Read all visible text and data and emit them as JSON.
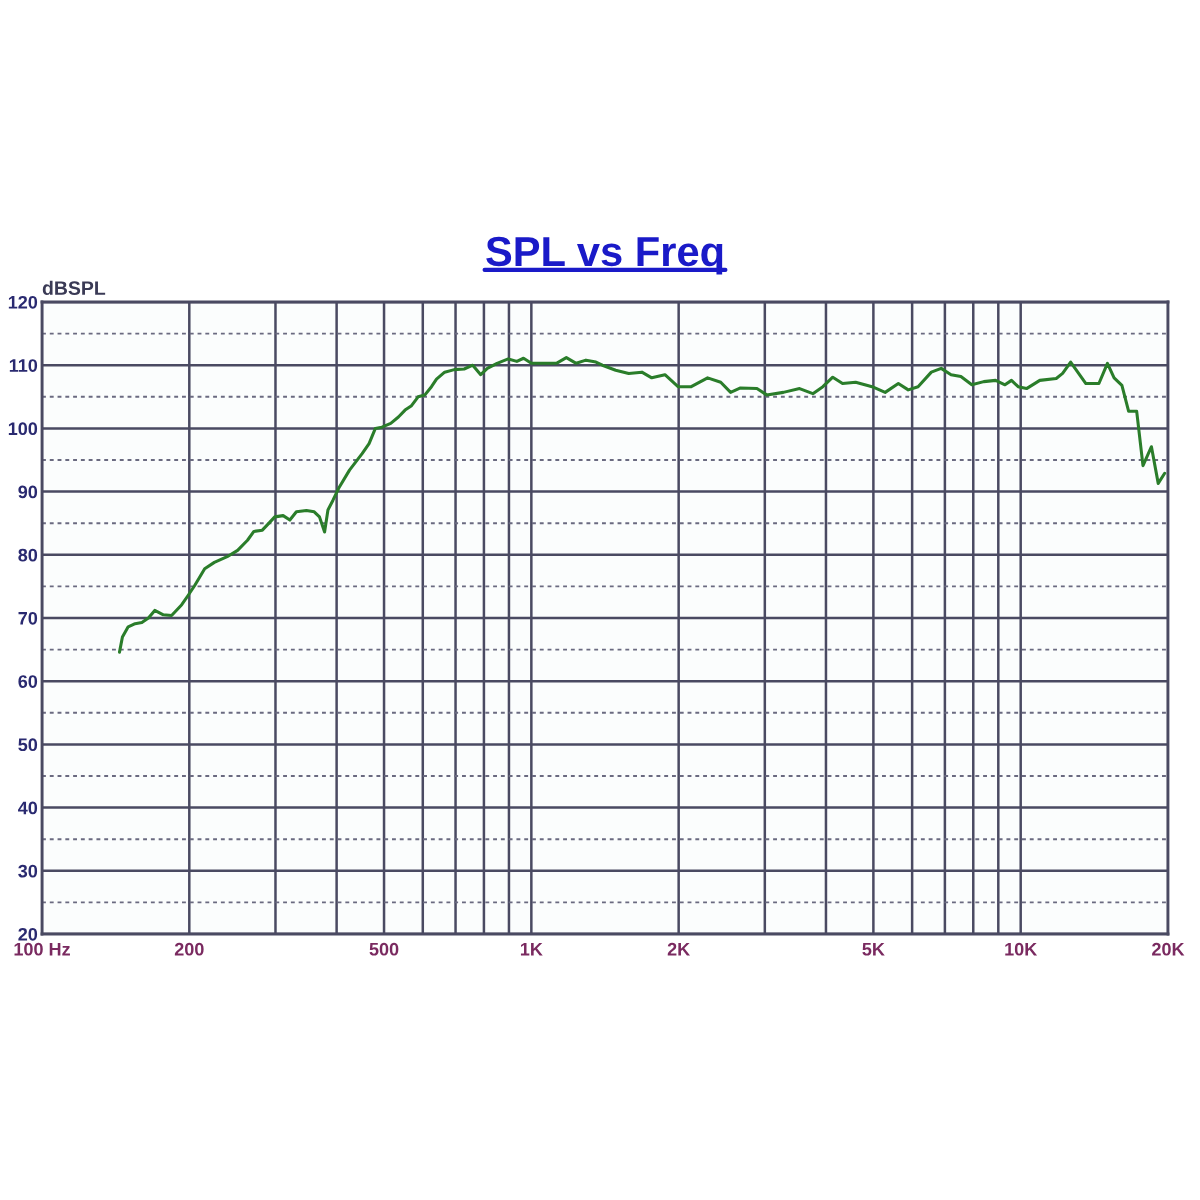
{
  "chart_data": {
    "type": "line",
    "title": "SPL vs Freq",
    "ylabel": "dBSPL",
    "log": "x",
    "grid": true,
    "xlim": [
      100,
      20000
    ],
    "xticks": [
      {
        "value": 100,
        "label": "100 Hz"
      },
      200,
      {
        "value": 300,
        "label": null
      },
      {
        "value": 400,
        "label": null
      },
      500,
      {
        "value": 600,
        "label": null
      },
      {
        "value": 700,
        "label": null
      },
      {
        "value": 800,
        "label": null
      },
      {
        "value": 900,
        "label": null
      },
      {
        "value": 1000,
        "label": "1K"
      },
      {
        "value": 2000,
        "label": "2K"
      },
      {
        "value": 3000,
        "label": null
      },
      {
        "value": 4000,
        "label": null
      },
      {
        "value": 5000,
        "label": "5K"
      },
      {
        "value": 6000,
        "label": null
      },
      {
        "value": 7000,
        "label": null
      },
      {
        "value": 8000,
        "label": null
      },
      {
        "value": 9000,
        "label": null
      },
      {
        "value": 10000,
        "label": "10K"
      },
      {
        "value": 20000,
        "label": "20K"
      }
    ],
    "ylim": [
      20,
      120
    ],
    "yticks": [
      20,
      {
        "value": 25,
        "label": null
      },
      30,
      {
        "value": 35,
        "label": null
      },
      40,
      {
        "value": 45,
        "label": null
      },
      50,
      {
        "value": 55,
        "label": null
      },
      60,
      {
        "value": 65,
        "label": null
      },
      70,
      {
        "value": 75,
        "label": null
      },
      80,
      {
        "value": 85,
        "label": null
      },
      90,
      {
        "value": 95,
        "label": null
      },
      100,
      {
        "value": 105,
        "label": null
      },
      110,
      {
        "value": 115,
        "label": null
      },
      120
    ],
    "color": "#2a7d2a",
    "x": [
      144,
      146,
      150,
      155,
      160,
      165,
      170,
      177,
      184,
      193,
      199,
      205,
      215,
      225,
      239,
      251,
      263,
      271,
      282,
      290,
      299,
      311,
      321,
      331,
      347,
      360,
      369,
      378,
      384,
      393,
      405,
      425,
      451,
      466,
      480,
      495,
      516,
      535,
      552,
      569,
      587,
      606,
      625,
      640,
      665,
      696,
      729,
      759,
      788,
      813,
      851,
      897,
      934,
      964,
      1000,
      1057,
      1125,
      1179,
      1235,
      1293,
      1355,
      1397,
      1487,
      1581,
      1682,
      1762,
      1875,
      1994,
      2122,
      2292,
      2438,
      2554,
      2675,
      2891,
      3027,
      3273,
      3533,
      3761,
      3942,
      4130,
      4325,
      4600,
      4970,
      5285,
      5623,
      5891,
      6170,
      6567,
      6879,
      7206,
      7548,
      7946,
      8405,
      8887,
      9288,
      9576,
      9880,
      10280,
      10940,
      11820,
      12180,
      12650,
      13590,
      14450,
      15040,
      15520,
      16100,
      16620,
      17260,
      17780,
      18500,
      19100,
      19690
    ],
    "values": [
      64.6,
      67,
      68.6,
      69.1,
      69.3,
      70,
      71.2,
      70.5,
      70.4,
      72.1,
      73.6,
      75.1,
      77.8,
      78.8,
      79.7,
      80.7,
      82.3,
      83.7,
      83.9,
      84.9,
      86,
      86.2,
      85.5,
      86.8,
      87,
      86.8,
      86,
      83.6,
      87.1,
      88.6,
      90.7,
      93.4,
      96,
      97.6,
      100,
      100.2,
      100.8,
      101.8,
      102.9,
      103.6,
      105,
      105.3,
      106.6,
      107.8,
      108.9,
      109.3,
      109.4,
      110,
      108.5,
      109.5,
      110.3,
      111,
      110.6,
      111.1,
      110.3,
      110.3,
      110.3,
      111.2,
      110.3,
      110.8,
      110.5,
      110,
      109.2,
      108.7,
      108.9,
      108,
      108.5,
      106.6,
      106.6,
      108,
      107.3,
      105.7,
      106.4,
      106.3,
      105.3,
      105.7,
      106.3,
      105.5,
      106.6,
      108.1,
      107.1,
      107.3,
      106.6,
      105.7,
      107.1,
      106.1,
      106.6,
      108.9,
      109.5,
      108.5,
      108.2,
      106.9,
      107.4,
      107.6,
      106.9,
      107.6,
      106.6,
      106.3,
      107.6,
      107.9,
      108.7,
      110.5,
      107.1,
      107.1,
      110.3,
      108,
      106.8,
      102.7,
      102.7,
      94.1,
      97.1,
      91.3,
      92.9
    ]
  }
}
